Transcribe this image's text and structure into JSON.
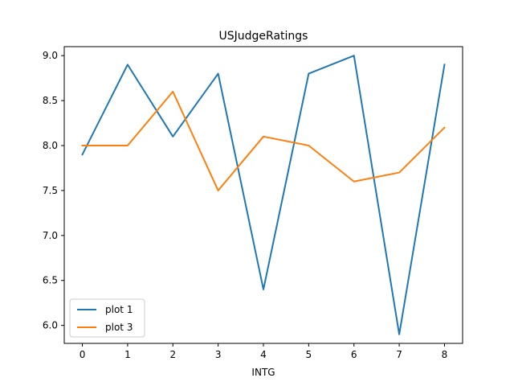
{
  "chart_data": {
    "type": "line",
    "title": "USJudgeRatings",
    "xlabel": "INTG",
    "ylabel": "",
    "x": [
      0,
      1,
      2,
      3,
      4,
      5,
      6,
      7,
      8
    ],
    "x_ticks": [
      0,
      1,
      2,
      3,
      4,
      5,
      6,
      7,
      8
    ],
    "y_ticks": [
      6.0,
      6.5,
      7.0,
      7.5,
      8.0,
      8.5,
      9.0
    ],
    "y_tick_labels": [
      "6.0",
      "6.5",
      "7.0",
      "7.5",
      "8.0",
      "8.5",
      "9.0"
    ],
    "xlim": [
      -0.4,
      8.4
    ],
    "ylim": [
      5.8,
      9.1
    ],
    "grid": false,
    "legend_position": "lower-left",
    "series": [
      {
        "name": "plot 1",
        "color": "#1f77b4",
        "values": [
          7.9,
          8.9,
          8.1,
          8.8,
          6.4,
          8.8,
          9.0,
          5.9,
          8.9
        ]
      },
      {
        "name": "plot 3",
        "color": "#ff7f0e",
        "values": [
          8.0,
          8.0,
          8.6,
          7.5,
          8.1,
          8.0,
          7.6,
          7.7,
          8.2
        ]
      }
    ]
  }
}
